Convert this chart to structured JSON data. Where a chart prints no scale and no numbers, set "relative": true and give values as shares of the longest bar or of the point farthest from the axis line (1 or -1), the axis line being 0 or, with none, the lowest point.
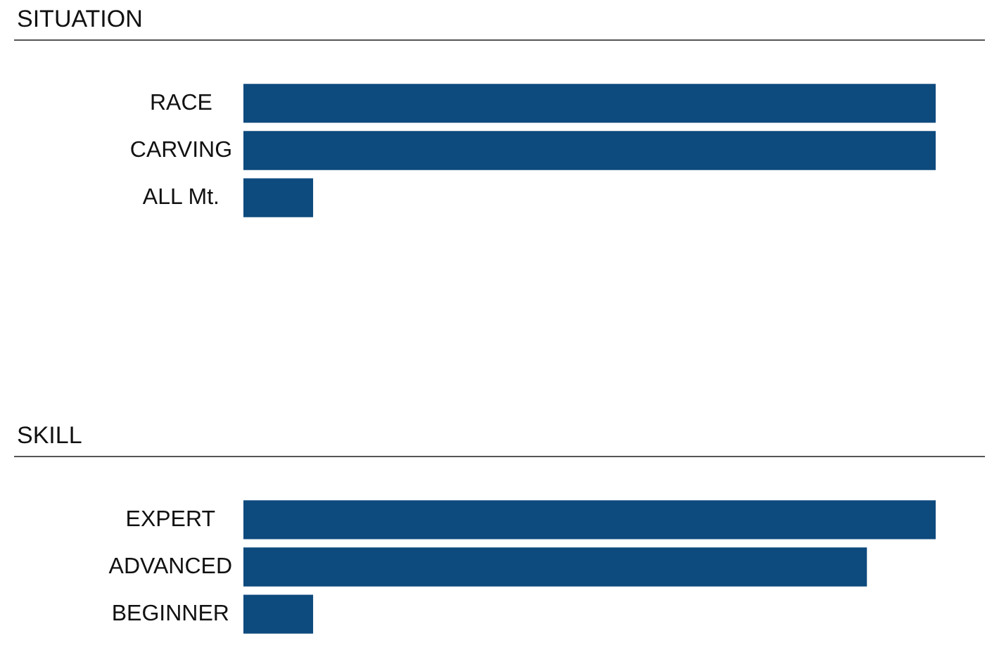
{
  "chart_data": [
    {
      "type": "bar",
      "orientation": "horizontal",
      "relative": true,
      "title": "SITUATION",
      "categories": [
        "RACE",
        "CARVING",
        "ALL Mt."
      ],
      "values": [
        1,
        1,
        0.1
      ],
      "colors": [
        "#0d4a7e",
        "#0d4a7e",
        "#0d4a7e"
      ],
      "legend": false
    },
    {
      "type": "bar",
      "orientation": "horizontal",
      "relative": true,
      "title": "SKILL",
      "categories": [
        "EXPERT",
        "ADVANCED",
        "BEGINNER"
      ],
      "values": [
        1,
        0.9,
        0.1
      ],
      "colors": [
        "#0d4a7e",
        "#0d4a7e",
        "#0d4a7e"
      ],
      "legend": false
    }
  ]
}
